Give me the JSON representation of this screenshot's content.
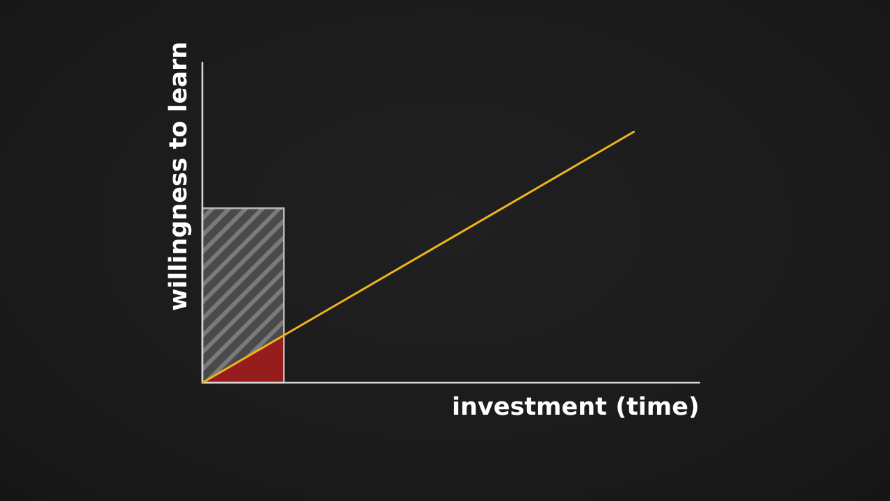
{
  "chart_data": {
    "type": "line",
    "title": "",
    "xlabel": "investment (time)",
    "ylabel": "willingness to learn",
    "xlim": [
      0,
      100
    ],
    "ylim": [
      0,
      100
    ],
    "grid": false,
    "ticks_shown": false,
    "series": [
      {
        "color": "#f2b41c",
        "x": [
          0,
          86.8
        ],
        "y": [
          0,
          78.4
        ]
      }
    ],
    "highlight_region": {
      "style": "diagonal-hatch",
      "fill_color": "#5a5a5a",
      "border_color": "#b9b9b9",
      "x": [
        0,
        16.4
      ],
      "y": [
        0,
        54.5
      ]
    },
    "area_under_line": {
      "color": "#951d1d",
      "x": [
        0,
        16.4
      ]
    }
  },
  "colors": {
    "background": "#1c1c1c",
    "axis": "#d8d8d8",
    "text": "#ffffff"
  }
}
